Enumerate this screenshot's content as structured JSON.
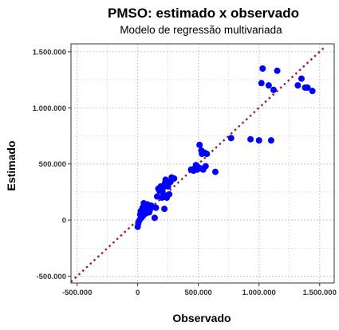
{
  "chart_data": {
    "type": "scatter",
    "title": "PMSO: estimado x observado",
    "subtitle": "Modelo de regressão multivariada",
    "xlabel": "Observado",
    "ylabel": "Estimado",
    "xlim": [
      -550000,
      1620000
    ],
    "ylim": [
      -560000,
      1570000
    ],
    "x_ticks": [
      -500000,
      0,
      500000,
      1000000,
      1500000
    ],
    "x_tick_labels": [
      "-500.000",
      "0",
      "500.000",
      "1.000.000",
      "1.500.000"
    ],
    "y_ticks": [
      -500000,
      0,
      500000,
      1000000,
      1500000
    ],
    "y_tick_labels": [
      "-500.000",
      "0",
      "500.000",
      "1.000.000",
      "1.500.000"
    ],
    "grid": true,
    "point_color": "#0000ff",
    "reference_line": {
      "style": "dotted",
      "color": "#a0204a",
      "from": [
        -550000,
        -550000
      ],
      "to": [
        1550000,
        1550000
      ]
    },
    "series": [
      {
        "name": "PMSO",
        "points": [
          [
            0,
            -60000
          ],
          [
            5000,
            -30000
          ],
          [
            15000,
            0
          ],
          [
            20000,
            50000
          ],
          [
            25000,
            80000
          ],
          [
            30000,
            20000
          ],
          [
            40000,
            110000
          ],
          [
            45000,
            40000
          ],
          [
            50000,
            150000
          ],
          [
            55000,
            90000
          ],
          [
            60000,
            130000
          ],
          [
            70000,
            60000
          ],
          [
            75000,
            100000
          ],
          [
            80000,
            140000
          ],
          [
            90000,
            110000
          ],
          [
            95000,
            70000
          ],
          [
            100000,
            90000
          ],
          [
            110000,
            130000
          ],
          [
            120000,
            120000
          ],
          [
            140000,
            20000
          ],
          [
            150000,
            110000
          ],
          [
            160000,
            210000
          ],
          [
            170000,
            280000
          ],
          [
            180000,
            260000
          ],
          [
            190000,
            300000
          ],
          [
            200000,
            200000
          ],
          [
            205000,
            250000
          ],
          [
            210000,
            290000
          ],
          [
            215000,
            220000
          ],
          [
            220000,
            100000
          ],
          [
            225000,
            330000
          ],
          [
            230000,
            360000
          ],
          [
            235000,
            310000
          ],
          [
            240000,
            200000
          ],
          [
            250000,
            300000
          ],
          [
            260000,
            230000
          ],
          [
            270000,
            340000
          ],
          [
            280000,
            380000
          ],
          [
            300000,
            370000
          ],
          [
            440000,
            450000
          ],
          [
            460000,
            440000
          ],
          [
            470000,
            460000
          ],
          [
            480000,
            490000
          ],
          [
            490000,
            450000
          ],
          [
            500000,
            470000
          ],
          [
            510000,
            670000
          ],
          [
            520000,
            460000
          ],
          [
            525000,
            620000
          ],
          [
            530000,
            590000
          ],
          [
            540000,
            450000
          ],
          [
            550000,
            600000
          ],
          [
            560000,
            480000
          ],
          [
            570000,
            590000
          ],
          [
            640000,
            430000
          ],
          [
            770000,
            730000
          ],
          [
            930000,
            720000
          ],
          [
            1000000,
            710000
          ],
          [
            1030000,
            1350000
          ],
          [
            1020000,
            1220000
          ],
          [
            1080000,
            1200000
          ],
          [
            1100000,
            710000
          ],
          [
            1120000,
            1160000
          ],
          [
            1150000,
            1330000
          ],
          [
            1320000,
            1200000
          ],
          [
            1350000,
            1260000
          ],
          [
            1380000,
            1180000
          ],
          [
            1400000,
            1180000
          ],
          [
            1440000,
            1150000
          ]
        ]
      }
    ]
  }
}
